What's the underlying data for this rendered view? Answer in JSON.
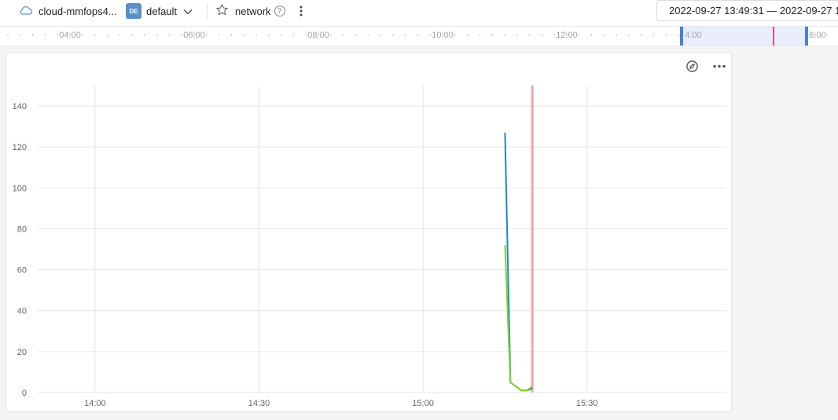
{
  "header": {
    "workspace_name": "cloud-mmfops4...",
    "env_badge": "DE",
    "env_name": "default",
    "favorite_label": "network",
    "help_glyph": "?",
    "time_range": "2022-09-27 13:49:31 — 2022-09-27 1"
  },
  "timeline": {
    "labels": [
      "04:00",
      "06:00",
      "08:00",
      "10:00",
      "12:00",
      "4:00",
      "6:00"
    ],
    "colors": {
      "selection": "#e8eefb",
      "handle": "#4a7de0",
      "now": "#e8506a"
    }
  },
  "icons": {
    "workspace": "cloud-icon",
    "env_dropdown": "chevron-down-icon",
    "favorite": "star-icon",
    "help": "help-circle-icon",
    "menu": "kebab-icon",
    "panel_explore": "compass-icon",
    "panel_menu": "more-horizontal-icon"
  },
  "chart_data": {
    "type": "line",
    "title": "",
    "xlabel": "",
    "ylabel": "",
    "x_ticks": [
      "14:00",
      "14:30",
      "15:00",
      "15:30"
    ],
    "x_range": [
      "13:49:31",
      "15:55:30"
    ],
    "ylim": [
      0,
      150
    ],
    "y_ticks": [
      0,
      20,
      40,
      60,
      80,
      100,
      120,
      140
    ],
    "grid": true,
    "now_marker": "15:20",
    "colors": {
      "series1": "#1e88c9",
      "series2": "#7ed321",
      "now_marker": "#f5a3a3"
    },
    "series": [
      {
        "x": [
          "15:15:00",
          "15:16:00",
          "15:18:00",
          "15:19:00",
          "15:20:00"
        ],
        "values": [
          127,
          5,
          1,
          1,
          2
        ]
      },
      {
        "x": [
          "15:15:00",
          "15:16:00",
          "15:18:00",
          "15:19:00",
          "15:20:00"
        ],
        "values": [
          72,
          5,
          1,
          1,
          3
        ]
      }
    ]
  }
}
